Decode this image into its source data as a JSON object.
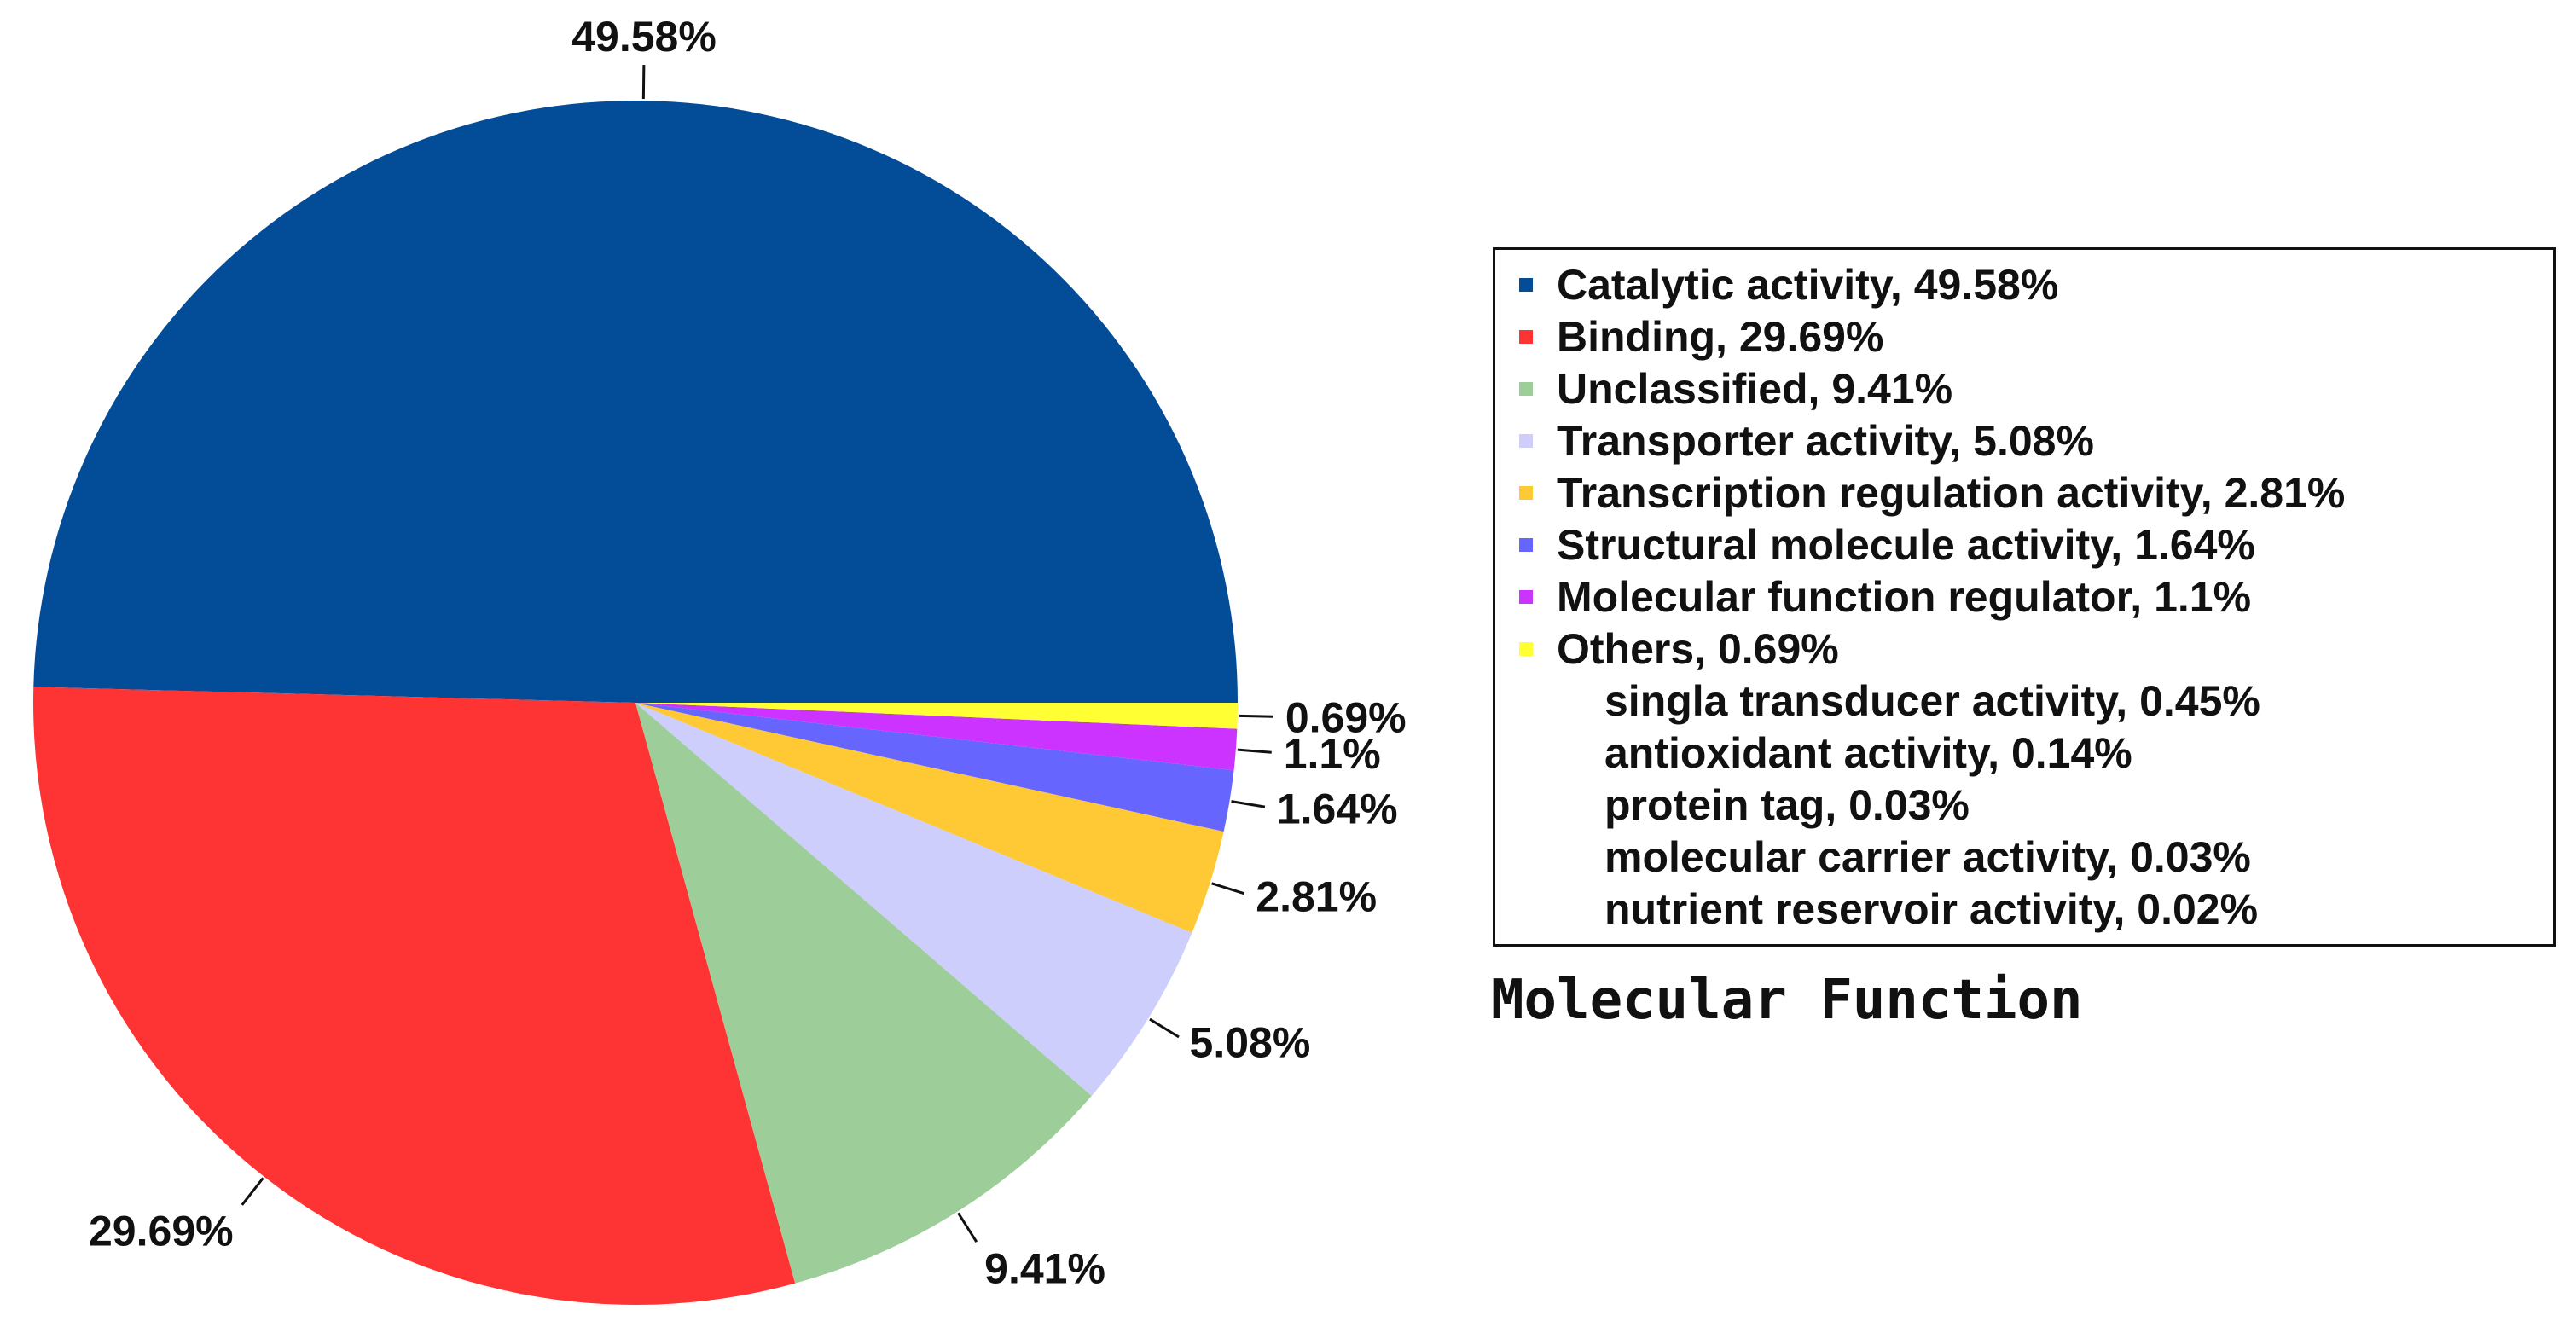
{
  "chart_data": {
    "type": "pie",
    "title": "Molecular Function",
    "slices": [
      {
        "name": "Catalytic activity",
        "value": 49.58,
        "label": "49.58%",
        "legend": "Catalytic activity, 49.58%",
        "color": "#034C97"
      },
      {
        "name": "Binding",
        "value": 29.69,
        "label": "29.69%",
        "legend": "Binding, 29.69%",
        "color": "#FE3334"
      },
      {
        "name": "Unclassified",
        "value": 9.41,
        "label": "9.41%",
        "legend": "Unclassified, 9.41%",
        "color": "#9DCD98"
      },
      {
        "name": "Transporter activity",
        "value": 5.08,
        "label": "5.08%",
        "legend": "Transporter activity, 5.08%",
        "color": "#CDCEFC"
      },
      {
        "name": "Transcription regulation activity",
        "value": 2.81,
        "label": "2.81%",
        "legend": "Transcription regulation activity, 2.81%",
        "color": "#FFC835"
      },
      {
        "name": "Structural molecule activity",
        "value": 1.64,
        "label": "1.64%",
        "legend": "Structural molecule activity, 1.64%",
        "color": "#6666FF"
      },
      {
        "name": "Molecular function regulator",
        "value": 1.1,
        "label": "1.1%",
        "legend": "Molecular function regulator, 1.1%",
        "color": "#CC33FF"
      },
      {
        "name": "Others",
        "value": 0.69,
        "label": "0.69%",
        "legend": "Others, 0.69%",
        "color": "#FFFF33"
      }
    ],
    "others_breakdown": [
      "singla transducer activity, 0.45%",
      "antioxidant activity, 0.14%",
      "protein tag, 0.03%",
      "molecular carrier activity, 0.03%",
      "nutrient reservoir activity, 0.02%"
    ],
    "legend_position": "right",
    "start_angle_deg": 0,
    "direction": "counterclockwise"
  }
}
